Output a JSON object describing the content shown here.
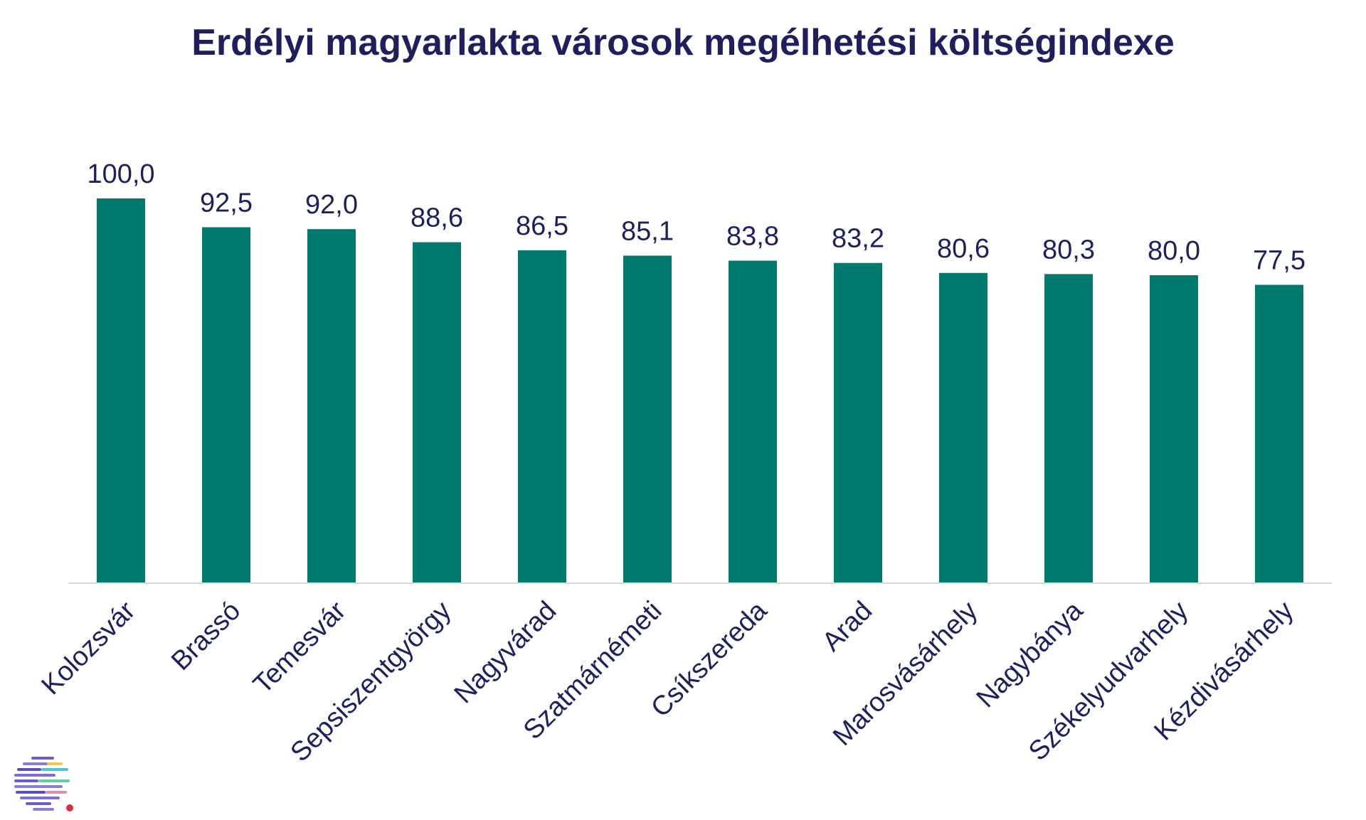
{
  "chart_data": {
    "type": "bar",
    "title": "Erdélyi magyarlakta városok megélhetési költségindexe",
    "xlabel": "",
    "ylabel": "",
    "categories": [
      "Kolozsvár",
      "Brassó",
      "Temesvár",
      "Sepsiszentgyörgy",
      "Nagyvárad",
      "Szatmárnémeti",
      "Csíkszereda",
      "Arad",
      "Marosvásárhely",
      "Nagybánya",
      "Székelyudvarhely",
      "Kézdivásárhely"
    ],
    "values": [
      100.0,
      92.5,
      92.0,
      88.6,
      86.5,
      85.1,
      83.8,
      83.2,
      80.6,
      80.3,
      80.0,
      77.5
    ],
    "value_labels": [
      "100,0",
      "92,5",
      "92,0",
      "88,6",
      "86,5",
      "85,1",
      "83,8",
      "83,2",
      "80,6",
      "80,3",
      "80,0",
      "77,5"
    ],
    "ylim": [
      0,
      100
    ],
    "grid": false,
    "legend": "none",
    "bar_color": "#007a6c",
    "text_color": "#1f1f5e",
    "axis_color": "#d9d9d9"
  },
  "logo": {
    "icon": "brand-logo-icon",
    "dot_color": "#e5283b"
  }
}
